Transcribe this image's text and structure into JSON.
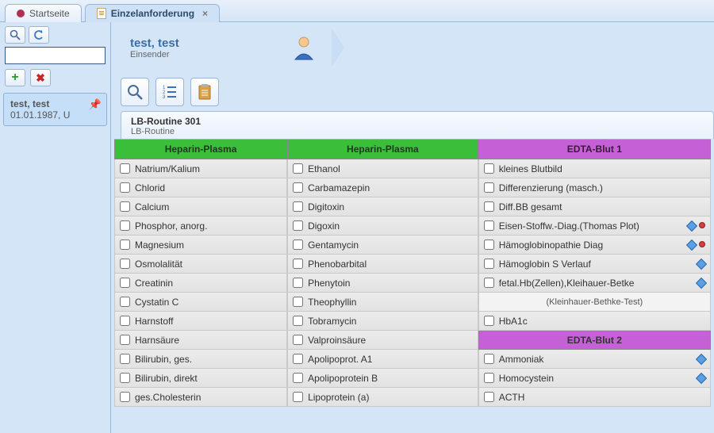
{
  "tabs": {
    "start": "Startseite",
    "single": "Einzelanforderung"
  },
  "sidebar": {
    "search_placeholder": "",
    "patient": {
      "name": "test, test",
      "date": "01.01.1987, U"
    }
  },
  "header": {
    "title": "test, test",
    "role": "Einsender"
  },
  "section": {
    "title": "LB-Routine 301",
    "subtitle": "LB-Routine"
  },
  "columns": {
    "col1_header": "Heparin-Plasma",
    "col2_header": "Heparin-Plasma",
    "col3_header": "EDTA-Blut 1",
    "col3_header2": "EDTA-Blut 2",
    "header_colors": {
      "green": "#3bbf3b",
      "purple": "#c660d6"
    }
  },
  "col1": [
    "Natrium/Kalium",
    "Chlorid",
    "Calcium",
    "Phosphor, anorg.",
    "Magnesium",
    "Osmolalität",
    "Creatinin",
    "Cystatin C",
    "Harnstoff",
    "Harnsäure",
    "Bilirubin, ges.",
    "Bilirubin, direkt",
    "ges.Cholesterin"
  ],
  "col2": [
    "Ethanol",
    "Carbamazepin",
    "Digitoxin",
    "Digoxin",
    "Gentamycin",
    "Phenobarbital",
    "Phenytoin",
    "Theophyllin",
    "Tobramycin",
    "Valproinsäure",
    "Apolipoprot. A1",
    "Apolipoprotein B",
    "Lipoprotein (a)"
  ],
  "col3": [
    {
      "label": "kleines Blutbild"
    },
    {
      "label": "Differenzierung (masch.)"
    },
    {
      "label": "Diff.BB gesamt"
    },
    {
      "label": "Eisen-Stoffw.-Diag.(Thomas Plot)",
      "flags": [
        "diamond",
        "red"
      ]
    },
    {
      "label": "Hämoglobinopathie Diag",
      "flags": [
        "diamond",
        "red"
      ]
    },
    {
      "label": "Hämoglobin S Verlauf",
      "flags": [
        "diamond"
      ]
    },
    {
      "label": "fetal.Hb(Zellen),Kleihauer-Betke",
      "flags": [
        "diamond"
      ]
    },
    {
      "sub": "(Kleinhauer-Bethke-Test)"
    },
    {
      "label": "HbA1c"
    },
    {
      "header2": "EDTA-Blut 2"
    },
    {
      "label": "Ammoniak",
      "flags": [
        "diamond"
      ]
    },
    {
      "label": "Homocystein",
      "flags": [
        "diamond"
      ]
    },
    {
      "label": "ACTH"
    }
  ]
}
